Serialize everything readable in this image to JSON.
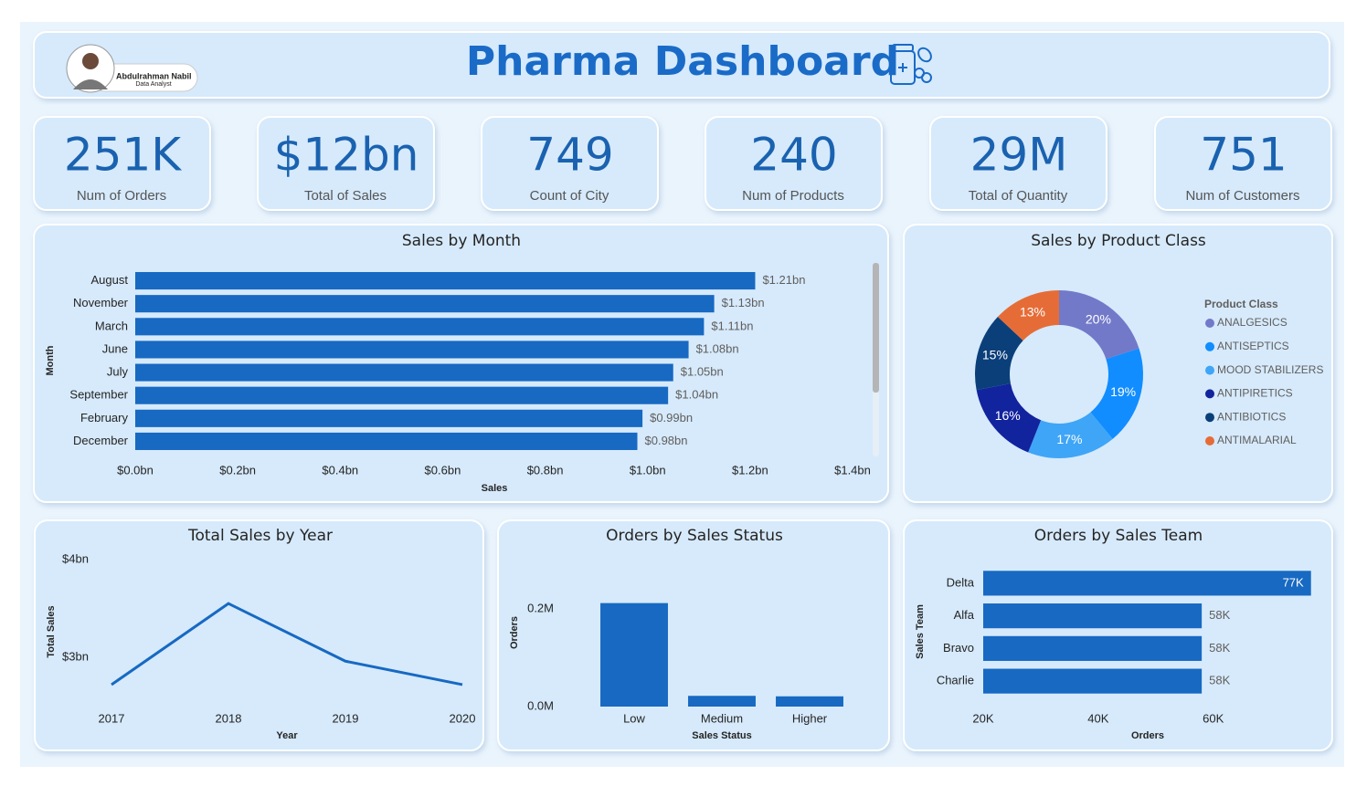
{
  "header": {
    "title": "Pharma Dashboard",
    "name": "Abdulrahman Nabil",
    "role": "Data Analyst"
  },
  "kpis": [
    {
      "value": "251K",
      "label": "Num of Orders"
    },
    {
      "value": "$12bn",
      "label": "Total of Sales"
    },
    {
      "value": "749",
      "label": "Count of City"
    },
    {
      "value": "240",
      "label": "Num of Products"
    },
    {
      "value": "29M",
      "label": "Total of Quantity"
    },
    {
      "value": "751",
      "label": "Num of Customers"
    }
  ],
  "chart_data": [
    {
      "type": "hbar",
      "title": "Sales by Month",
      "categories": [
        "August",
        "November",
        "March",
        "June",
        "July",
        "September",
        "February",
        "December"
      ],
      "values": [
        1.21,
        1.13,
        1.11,
        1.08,
        1.05,
        1.04,
        0.99,
        0.98
      ],
      "value_labels": [
        "$1.21bn",
        "$1.13bn",
        "$1.11bn",
        "$1.08bn",
        "$1.05bn",
        "$1.04bn",
        "$0.99bn",
        "$0.98bn"
      ],
      "color": "#1769c2",
      "xlim": [
        0,
        1.4
      ],
      "xticks": [
        {
          "value": 0,
          "label": "$0.0bn"
        },
        {
          "value": 0.2,
          "label": "$0.2bn"
        },
        {
          "value": 0.4,
          "label": "$0.4bn"
        },
        {
          "value": 0.6,
          "label": "$0.6bn"
        },
        {
          "value": 0.8,
          "label": "$0.8bn"
        },
        {
          "value": 1.0,
          "label": "$1.0bn"
        },
        {
          "value": 1.2,
          "label": "$1.2bn"
        },
        {
          "value": 1.4,
          "label": "$1.4bn"
        }
      ],
      "xlabel": "Sales",
      "ylabel": "Month"
    },
    {
      "type": "donut",
      "title": "Sales by Product Class",
      "legend_title": "Product Class",
      "categories": [
        "ANALGESICS",
        "ANTISEPTICS",
        "MOOD STABILIZERS",
        "ANTIPIRETICS",
        "ANTIBIOTICS",
        "ANTIMALARIAL"
      ],
      "values": [
        20,
        19,
        17,
        16,
        15,
        13
      ],
      "value_labels": [
        "20%",
        "19%",
        "17%",
        "16%",
        "15%",
        "13%"
      ],
      "colors": [
        "#7279c9",
        "#118dff",
        "#3fa5f7",
        "#12239e",
        "#0b3f7a",
        "#e66c37"
      ]
    },
    {
      "type": "line",
      "title": "Total Sales by Year",
      "categories": [
        "2017",
        "2018",
        "2019",
        "2020"
      ],
      "values": [
        2.72,
        3.55,
        2.96,
        2.72
      ],
      "color": "#1769c2",
      "ylim": [
        2.5,
        4
      ],
      "yticks": [
        {
          "value": 3,
          "label": "$3bn"
        },
        {
          "value": 4,
          "label": "$4bn"
        }
      ],
      "xlabel": "Year",
      "ylabel": "Total Sales"
    },
    {
      "type": "bar",
      "title": "Orders by Sales Status",
      "categories": [
        "Low",
        "Medium",
        "Higher"
      ],
      "values": [
        0.212,
        0.022,
        0.021
      ],
      "color": "#1769c2",
      "ylim": [
        0,
        0.23
      ],
      "yticks": [
        {
          "value": 0,
          "label": "0.0M"
        },
        {
          "value": 0.2,
          "label": "0.2M"
        }
      ],
      "xlabel": "Sales Status",
      "ylabel": "Orders"
    },
    {
      "type": "hbar",
      "title": "Orders by Sales Team",
      "categories": [
        "Delta",
        "Alfa",
        "Bravo",
        "Charlie"
      ],
      "values": [
        77,
        58,
        58,
        58
      ],
      "value_labels": [
        "77K",
        "58K",
        "58K",
        "58K"
      ],
      "color": "#1769c2",
      "xlim": [
        20,
        78
      ],
      "xticks": [
        {
          "value": 20,
          "label": "20K"
        },
        {
          "value": 40,
          "label": "40K"
        },
        {
          "value": 60,
          "label": "60K"
        }
      ],
      "xlabel": "Orders",
      "ylabel": "Sales Team"
    }
  ]
}
